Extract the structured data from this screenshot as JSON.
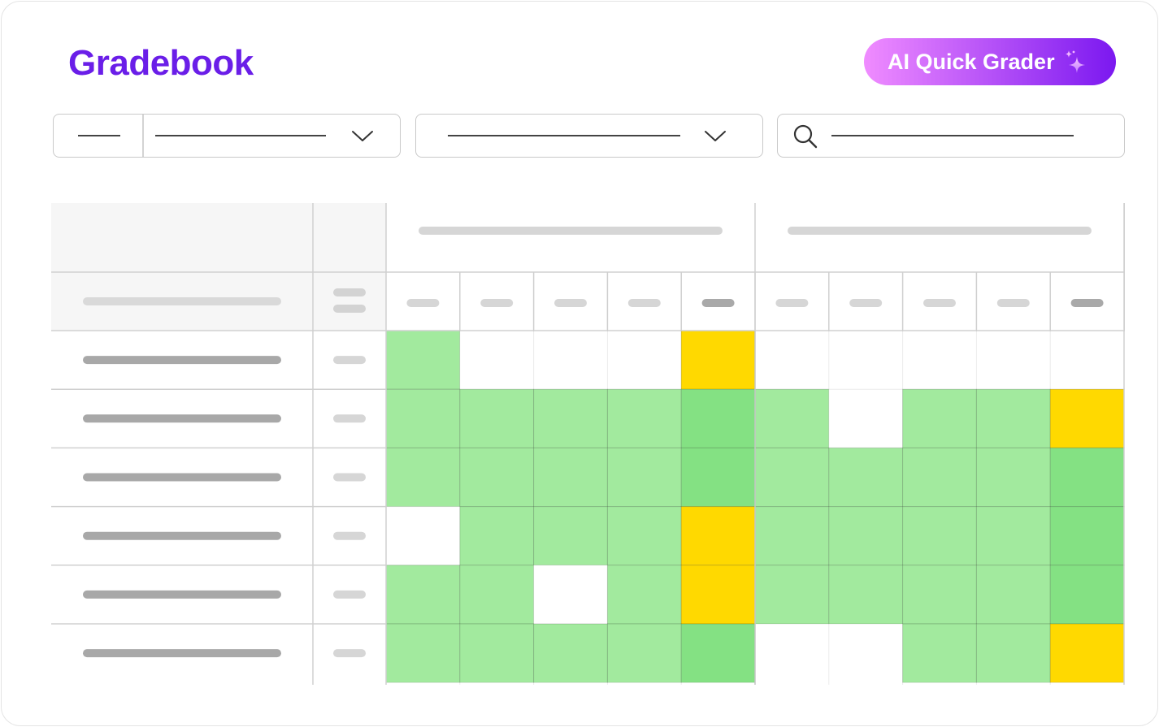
{
  "header": {
    "title": "Gradebook",
    "title_color": "#6a1ee8",
    "ai_button": {
      "label": "AI Quick Grader",
      "icon": "sparkle-icon",
      "gradient_from": "#f08cff",
      "gradient_to": "#7b18f0"
    }
  },
  "filters": {
    "section_dropdown": {
      "icon": "chevron-down-icon"
    },
    "assignment_dropdown": {
      "icon": "chevron-down-icon"
    },
    "search": {
      "icon": "search-icon"
    }
  },
  "gradebook": {
    "groups": 2,
    "columns_per_group": 5,
    "status_colors": {
      "W": "#ffffff",
      "G": "#a2ea9e",
      "D": "#84e183",
      "Y": "#ffd900"
    },
    "header_cell_emphasis": [
      false,
      false,
      false,
      false,
      true,
      false,
      false,
      false,
      false,
      true
    ],
    "rows": [
      [
        "G",
        "W",
        "W",
        "W",
        "Y",
        "W",
        "W",
        "W",
        "W",
        "W"
      ],
      [
        "G",
        "G",
        "G",
        "G",
        "D",
        "G",
        "W",
        "G",
        "G",
        "Y"
      ],
      [
        "G",
        "G",
        "G",
        "G",
        "D",
        "G",
        "G",
        "G",
        "G",
        "D"
      ],
      [
        "W",
        "G",
        "G",
        "G",
        "Y",
        "G",
        "G",
        "G",
        "G",
        "D"
      ],
      [
        "G",
        "G",
        "W",
        "G",
        "Y",
        "G",
        "G",
        "G",
        "G",
        "D"
      ],
      [
        "G",
        "G",
        "G",
        "G",
        "D",
        "W",
        "W",
        "G",
        "G",
        "Y"
      ]
    ]
  }
}
